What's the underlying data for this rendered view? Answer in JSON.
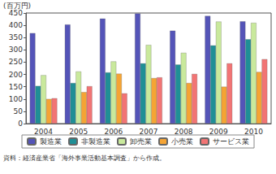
{
  "chart_data": {
    "type": "bar",
    "y_label": "(百万円)",
    "annotations": [
      "資料：経済産業省「海外事業活動基本調査」から作成。"
    ],
    "categories": [
      "2004",
      "2005",
      "2006",
      "2007",
      "2008",
      "2009",
      "2010"
    ],
    "series": [
      {
        "name": "製造業",
        "color": "#5454b8",
        "values": [
          368,
          403,
          427,
          448,
          378,
          438,
          416
        ]
      },
      {
        "name": "非製造業",
        "color": "#1f8f96",
        "values": [
          153,
          165,
          208,
          245,
          240,
          318,
          343
        ]
      },
      {
        "name": "卸売業",
        "color": "#c9e99c",
        "values": [
          197,
          212,
          253,
          320,
          288,
          415,
          410
        ]
      },
      {
        "name": "小売業",
        "color": "#f5a434",
        "values": [
          100,
          128,
          203,
          185,
          165,
          150,
          210
        ]
      },
      {
        "name": "サービス業",
        "color": "#f27474",
        "values": [
          103,
          152,
          123,
          188,
          202,
          245,
          262
        ]
      }
    ],
    "ylim": [
      0,
      450
    ],
    "yticks": [
      0,
      50,
      100,
      150,
      200,
      250,
      300,
      350,
      400,
      450
    ],
    "grid": false,
    "legend": "bottom"
  }
}
